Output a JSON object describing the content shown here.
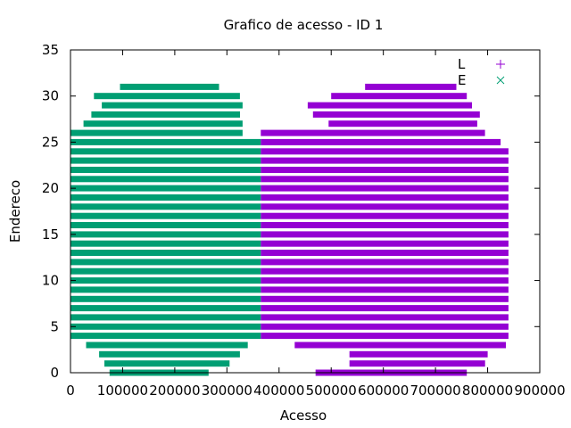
{
  "chart_data": {
    "type": "scatter",
    "title": "Grafico de acesso - ID 1",
    "xlabel": "Acesso",
    "ylabel": "Endereco",
    "xlim": [
      0,
      900000
    ],
    "ylim": [
      0,
      35
    ],
    "x_ticks": [
      "0",
      "100000",
      "200000",
      "300000",
      "400000",
      "500000",
      "600000",
      "700000",
      "800000",
      "900000"
    ],
    "y_ticks": [
      "0",
      "5",
      "10",
      "15",
      "20",
      "25",
      "30",
      "35"
    ],
    "grid": false,
    "legend_position": "top-right",
    "series": [
      {
        "name": "L",
        "color": "#9400d3",
        "marker": "plus",
        "bands": [
          {
            "y": 0,
            "x_start": 470000,
            "x_end": 760000
          },
          {
            "y": 1,
            "x_start": 535000,
            "x_end": 795000
          },
          {
            "y": 2,
            "x_start": 535000,
            "x_end": 800000
          },
          {
            "y": 3,
            "x_start": 430000,
            "x_end": 835000
          },
          {
            "y": 4,
            "x_start": 365000,
            "x_end": 840000
          },
          {
            "y": 5,
            "x_start": 365000,
            "x_end": 840000
          },
          {
            "y": 6,
            "x_start": 365000,
            "x_end": 840000
          },
          {
            "y": 7,
            "x_start": 365000,
            "x_end": 840000
          },
          {
            "y": 8,
            "x_start": 365000,
            "x_end": 840000
          },
          {
            "y": 9,
            "x_start": 365000,
            "x_end": 840000
          },
          {
            "y": 10,
            "x_start": 365000,
            "x_end": 840000
          },
          {
            "y": 11,
            "x_start": 365000,
            "x_end": 840000
          },
          {
            "y": 12,
            "x_start": 365000,
            "x_end": 840000
          },
          {
            "y": 13,
            "x_start": 365000,
            "x_end": 840000
          },
          {
            "y": 14,
            "x_start": 365000,
            "x_end": 840000
          },
          {
            "y": 15,
            "x_start": 365000,
            "x_end": 840000
          },
          {
            "y": 16,
            "x_start": 365000,
            "x_end": 840000
          },
          {
            "y": 17,
            "x_start": 365000,
            "x_end": 840000
          },
          {
            "y": 18,
            "x_start": 365000,
            "x_end": 840000
          },
          {
            "y": 19,
            "x_start": 365000,
            "x_end": 840000
          },
          {
            "y": 20,
            "x_start": 365000,
            "x_end": 840000
          },
          {
            "y": 21,
            "x_start": 365000,
            "x_end": 840000
          },
          {
            "y": 22,
            "x_start": 365000,
            "x_end": 840000
          },
          {
            "y": 23,
            "x_start": 365000,
            "x_end": 840000
          },
          {
            "y": 24,
            "x_start": 365000,
            "x_end": 840000
          },
          {
            "y": 25,
            "x_start": 365000,
            "x_end": 825000
          },
          {
            "y": 26,
            "x_start": 365000,
            "x_end": 795000
          },
          {
            "y": 27,
            "x_start": 495000,
            "x_end": 780000
          },
          {
            "y": 28,
            "x_start": 465000,
            "x_end": 785000
          },
          {
            "y": 29,
            "x_start": 455000,
            "x_end": 770000
          },
          {
            "y": 30,
            "x_start": 500000,
            "x_end": 760000
          },
          {
            "y": 31,
            "x_start": 565000,
            "x_end": 740000
          }
        ]
      },
      {
        "name": "E",
        "color": "#009e73",
        "marker": "cross",
        "bands": [
          {
            "y": 0,
            "x_start": 75000,
            "x_end": 265000
          },
          {
            "y": 1,
            "x_start": 65000,
            "x_end": 305000
          },
          {
            "y": 2,
            "x_start": 55000,
            "x_end": 325000
          },
          {
            "y": 3,
            "x_start": 30000,
            "x_end": 340000
          },
          {
            "y": 4,
            "x_start": 0,
            "x_end": 365000
          },
          {
            "y": 5,
            "x_start": 0,
            "x_end": 365000
          },
          {
            "y": 6,
            "x_start": 0,
            "x_end": 365000
          },
          {
            "y": 7,
            "x_start": 0,
            "x_end": 365000
          },
          {
            "y": 8,
            "x_start": 0,
            "x_end": 365000
          },
          {
            "y": 9,
            "x_start": 0,
            "x_end": 365000
          },
          {
            "y": 10,
            "x_start": 0,
            "x_end": 365000
          },
          {
            "y": 11,
            "x_start": 0,
            "x_end": 365000
          },
          {
            "y": 12,
            "x_start": 0,
            "x_end": 365000
          },
          {
            "y": 13,
            "x_start": 0,
            "x_end": 365000
          },
          {
            "y": 14,
            "x_start": 0,
            "x_end": 365000
          },
          {
            "y": 15,
            "x_start": 0,
            "x_end": 365000
          },
          {
            "y": 16,
            "x_start": 0,
            "x_end": 365000
          },
          {
            "y": 17,
            "x_start": 0,
            "x_end": 365000
          },
          {
            "y": 18,
            "x_start": 0,
            "x_end": 365000
          },
          {
            "y": 19,
            "x_start": 0,
            "x_end": 365000
          },
          {
            "y": 20,
            "x_start": 0,
            "x_end": 365000
          },
          {
            "y": 21,
            "x_start": 0,
            "x_end": 365000
          },
          {
            "y": 22,
            "x_start": 0,
            "x_end": 365000
          },
          {
            "y": 23,
            "x_start": 0,
            "x_end": 365000
          },
          {
            "y": 24,
            "x_start": 0,
            "x_end": 365000
          },
          {
            "y": 25,
            "x_start": 0,
            "x_end": 365000
          },
          {
            "y": 26,
            "x_start": 0,
            "x_end": 330000
          },
          {
            "y": 27,
            "x_start": 25000,
            "x_end": 330000
          },
          {
            "y": 28,
            "x_start": 40000,
            "x_end": 325000
          },
          {
            "y": 29,
            "x_start": 60000,
            "x_end": 330000
          },
          {
            "y": 30,
            "x_start": 45000,
            "x_end": 325000
          },
          {
            "y": 31,
            "x_start": 95000,
            "x_end": 285000
          }
        ]
      }
    ]
  }
}
